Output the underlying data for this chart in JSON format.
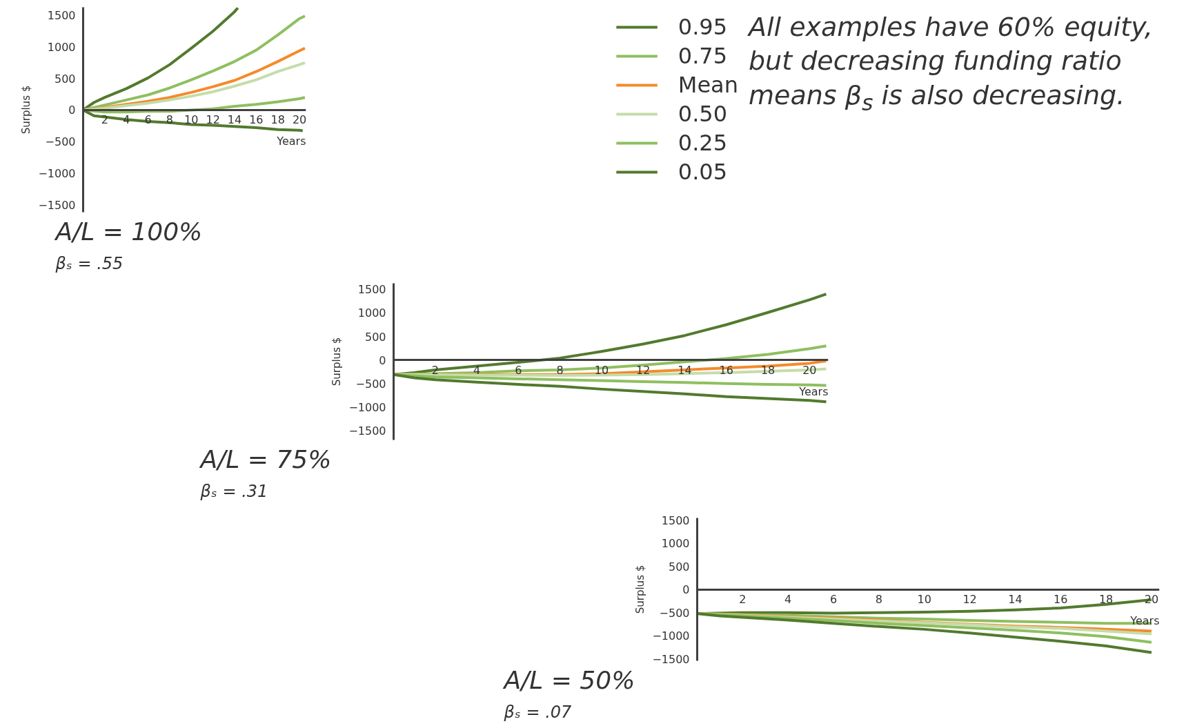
{
  "chart_data": [
    {
      "type": "line",
      "title": "A/L = 100%",
      "subtitle": "βₛ = .55",
      "xlabel": "Years",
      "ylabel": "Surplus $",
      "xlim": [
        0,
        20.6
      ],
      "ylim": [
        -1620,
        1630
      ],
      "xticks": [
        2,
        4,
        6,
        8,
        10,
        12,
        14,
        16,
        18,
        20
      ],
      "yticks": [
        -1500,
        -1000,
        -500,
        0,
        500,
        1000,
        1500
      ],
      "grid": false,
      "legend": "right",
      "series": [
        {
          "name": "0.95",
          "color": "#527a2e",
          "x": [
            0,
            1,
            2,
            4,
            6,
            8,
            10,
            12,
            14,
            14.3
          ],
          "values": [
            0,
            120,
            200,
            340,
            510,
            720,
            980,
            1250,
            1560,
            1620
          ]
        },
        {
          "name": "0.75",
          "color": "#8fbf60",
          "x": [
            0,
            2,
            4,
            6,
            8,
            10,
            12,
            14,
            16,
            18,
            20,
            20.5
          ],
          "values": [
            0,
            80,
            160,
            240,
            350,
            480,
            620,
            770,
            950,
            1190,
            1450,
            1490
          ]
        },
        {
          "name": "Mean",
          "color": "#f58a2a",
          "x": [
            0,
            2,
            4,
            6,
            8,
            10,
            12,
            14,
            16,
            18,
            20,
            20.5
          ],
          "values": [
            0,
            40,
            90,
            140,
            200,
            280,
            370,
            470,
            610,
            770,
            940,
            980
          ]
        },
        {
          "name": "0.50",
          "color": "#c5dcaa",
          "x": [
            0,
            2,
            4,
            6,
            8,
            10,
            12,
            14,
            16,
            18,
            20,
            20.5
          ],
          "values": [
            0,
            30,
            70,
            110,
            160,
            220,
            290,
            380,
            480,
            610,
            720,
            750
          ]
        },
        {
          "name": "0.25",
          "color": "#8fbf60",
          "x": [
            0,
            2,
            4,
            6,
            8,
            10,
            12,
            14,
            16,
            18,
            20,
            20.5
          ],
          "values": [
            0,
            -30,
            -30,
            -20,
            -20,
            0,
            20,
            60,
            90,
            130,
            180,
            200
          ]
        },
        {
          "name": "0.05",
          "color": "#527a2e",
          "x": [
            0,
            1,
            2,
            4,
            6,
            8,
            10,
            12,
            14,
            16,
            18,
            20,
            20.3
          ],
          "values": [
            0,
            -90,
            -110,
            -150,
            -180,
            -200,
            -230,
            -240,
            -260,
            -280,
            -310,
            -320,
            -330
          ]
        }
      ]
    },
    {
      "type": "line",
      "title": "A/L = 75%",
      "subtitle": "βₛ = .31",
      "xlabel": "Years",
      "ylabel": "Surplus $",
      "xlim": [
        0,
        20.9
      ],
      "ylim": [
        -1700,
        1630
      ],
      "xticks": [
        2,
        4,
        6,
        8,
        10,
        12,
        14,
        16,
        18,
        20
      ],
      "yticks": [
        -1500,
        -1000,
        -500,
        0,
        500,
        1000,
        1500
      ],
      "grid": false,
      "series": [
        {
          "color": "#527a2e",
          "x": [
            0,
            1,
            2,
            4,
            6,
            8,
            10,
            12,
            14,
            16,
            18,
            20,
            20.8
          ],
          "values": [
            -310,
            -270,
            -210,
            -130,
            -50,
            40,
            180,
            340,
            520,
            750,
            1010,
            1280,
            1400
          ]
        },
        {
          "color": "#8fbf60",
          "x": [
            0,
            2,
            4,
            6,
            8,
            10,
            12,
            14,
            16,
            18,
            20,
            20.8
          ],
          "values": [
            -310,
            -290,
            -270,
            -230,
            -210,
            -170,
            -110,
            -40,
            30,
            120,
            240,
            300
          ]
        },
        {
          "color": "#f58a2a",
          "x": [
            0,
            2,
            4,
            6,
            8,
            10,
            12,
            14,
            16,
            18,
            20,
            20.8
          ],
          "values": [
            -310,
            -310,
            -310,
            -310,
            -310,
            -290,
            -250,
            -210,
            -170,
            -130,
            -70,
            -20
          ]
        },
        {
          "color": "#c5dcaa",
          "x": [
            0,
            4,
            8,
            10,
            12,
            14,
            16,
            18,
            20,
            20.8
          ],
          "values": [
            -310,
            -320,
            -330,
            -320,
            -310,
            -290,
            -270,
            -240,
            -210,
            -190
          ]
        },
        {
          "color": "#8fbf60",
          "x": [
            0,
            2,
            4,
            6,
            8,
            10,
            12,
            14,
            16,
            18,
            20,
            20.8
          ],
          "values": [
            -310,
            -360,
            -380,
            -400,
            -420,
            -440,
            -460,
            -480,
            -500,
            -520,
            -530,
            -540
          ]
        },
        {
          "color": "#527a2e",
          "x": [
            0,
            1,
            2,
            4,
            6,
            8,
            10,
            12,
            14,
            16,
            18,
            20,
            20.8
          ],
          "values": [
            -310,
            -380,
            -420,
            -470,
            -520,
            -560,
            -620,
            -670,
            -720,
            -780,
            -820,
            -860,
            -890
          ]
        }
      ]
    },
    {
      "type": "line",
      "title": "A/L = 50%",
      "subtitle": "βₛ = .07",
      "xlabel": "Years",
      "ylabel": "Surplus $",
      "xlim": [
        0,
        20.35
      ],
      "ylim": [
        -1540,
        1545
      ],
      "xticks": [
        2,
        4,
        6,
        8,
        10,
        12,
        14,
        16,
        18,
        20
      ],
      "yticks": [
        -1500,
        -1000,
        -500,
        0,
        500,
        1000,
        1500
      ],
      "grid": false,
      "series": [
        {
          "color": "#527a2e",
          "x": [
            0,
            2,
            4,
            6,
            8,
            10,
            12,
            14,
            16,
            18,
            20
          ],
          "values": [
            -520,
            -500,
            -500,
            -510,
            -500,
            -490,
            -470,
            -440,
            -400,
            -320,
            -220
          ]
        },
        {
          "color": "#8fbf60",
          "x": [
            0,
            2,
            4,
            6,
            8,
            10,
            12,
            14,
            16,
            18,
            20
          ],
          "values": [
            -520,
            -540,
            -560,
            -590,
            -620,
            -640,
            -670,
            -690,
            -710,
            -730,
            -730
          ]
        },
        {
          "color": "#f58a2a",
          "x": [
            0,
            2,
            4,
            6,
            8,
            10,
            12,
            14,
            16,
            18,
            20
          ],
          "values": [
            -520,
            -550,
            -590,
            -620,
            -660,
            -710,
            -750,
            -790,
            -820,
            -860,
            -900
          ]
        },
        {
          "color": "#c5dcaa",
          "x": [
            0,
            2,
            4,
            6,
            8,
            10,
            12,
            14,
            16,
            18,
            20
          ],
          "values": [
            -520,
            -560,
            -600,
            -640,
            -680,
            -720,
            -760,
            -810,
            -840,
            -900,
            -960
          ]
        },
        {
          "color": "#8fbf60",
          "x": [
            0,
            2,
            4,
            6,
            8,
            10,
            12,
            14,
            16,
            18,
            20
          ],
          "values": [
            -520,
            -570,
            -620,
            -670,
            -730,
            -780,
            -830,
            -880,
            -940,
            -1020,
            -1140
          ]
        },
        {
          "color": "#527a2e",
          "x": [
            0,
            1,
            2,
            4,
            6,
            8,
            10,
            12,
            14,
            16,
            18,
            20
          ],
          "values": [
            -520,
            -570,
            -600,
            -660,
            -730,
            -800,
            -860,
            -940,
            -1030,
            -1120,
            -1220,
            -1360
          ]
        }
      ]
    },
    {
      "type": "other",
      "annotations": [
        "All examples have 60% equity, but decreasing funding ratio means β$_{s}$ is also decreasing."
      ]
    }
  ]
}
